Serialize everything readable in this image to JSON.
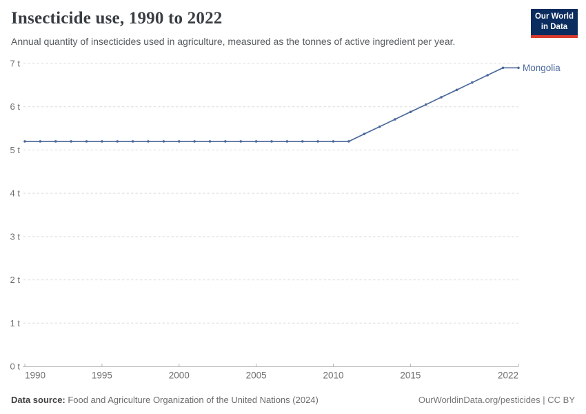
{
  "chart_data": {
    "type": "line",
    "title": "Insecticide use, 1990 to 2022",
    "subtitle": "Annual quantity of insecticides used in agriculture, measured as the tonnes of active ingredient per year.",
    "xlabel": "",
    "ylabel": "",
    "xlim": [
      1990,
      2022
    ],
    "ylim": [
      0,
      7
    ],
    "grid": "horizontal-dashed",
    "legend_position": "line-end-label",
    "x": [
      1990,
      1991,
      1992,
      1993,
      1994,
      1995,
      1996,
      1997,
      1998,
      1999,
      2000,
      2001,
      2002,
      2003,
      2004,
      2005,
      2006,
      2007,
      2008,
      2009,
      2010,
      2011,
      2012,
      2013,
      2014,
      2015,
      2016,
      2017,
      2018,
      2019,
      2020,
      2021,
      2022
    ],
    "series": [
      {
        "name": "Mongolia",
        "color": "#4c6a9c",
        "values": [
          5.2,
          5.2,
          5.2,
          5.2,
          5.2,
          5.2,
          5.2,
          5.2,
          5.2,
          5.2,
          5.2,
          5.2,
          5.2,
          5.2,
          5.2,
          5.2,
          5.2,
          5.2,
          5.2,
          5.2,
          5.2,
          5.2,
          5.37,
          5.54,
          5.71,
          5.88,
          6.05,
          6.22,
          6.39,
          6.56,
          6.73,
          6.9,
          6.9
        ]
      }
    ],
    "yticks": {
      "values": [
        0,
        1,
        2,
        3,
        4,
        5,
        6,
        7
      ],
      "labels": [
        "0 t",
        "1 t",
        "2 t",
        "3 t",
        "4 t",
        "5 t",
        "6 t",
        "7 t"
      ]
    },
    "xticks": [
      1990,
      1995,
      2000,
      2005,
      2010,
      2015,
      2022
    ]
  },
  "header": {
    "logo": {
      "line1": "Our World",
      "line2": "in Data",
      "bg_color": "#0b2c5e",
      "accent_color": "#d93a2d"
    }
  },
  "footer": {
    "source_label": "Data source:",
    "source_text": " Food and Agriculture Organization of the United Nations (2024)",
    "credit": "OurWorldinData.org/pesticides | CC BY"
  },
  "colors": {
    "series_blue": "#4c6a9c",
    "gridline": "#dcdcdc",
    "axis": "#b5b5b5",
    "tick_label": "#6e6e6e",
    "title_text": "#383d42",
    "subtitle_text": "#555a5e"
  }
}
